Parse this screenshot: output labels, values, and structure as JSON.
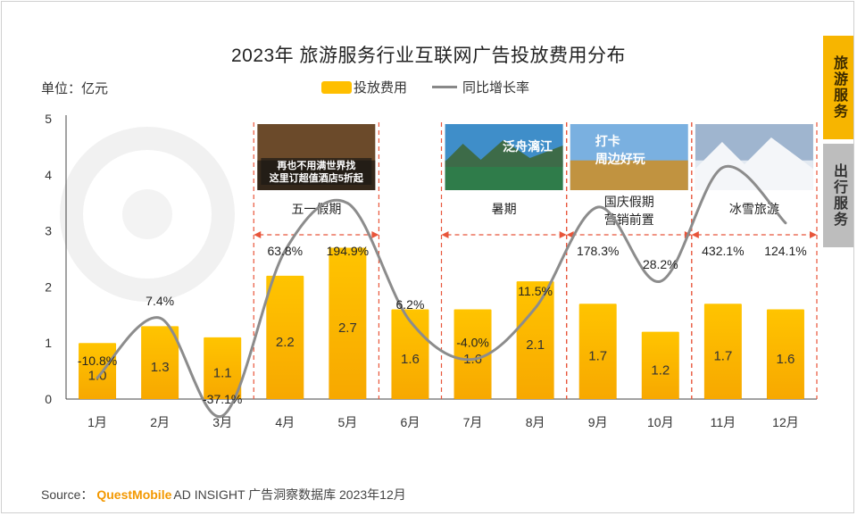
{
  "header": {
    "title": "2023年 旅游服务行业互联网广告投放费用分布",
    "unit": "单位：亿元"
  },
  "legend": {
    "bar_label": "投放费用",
    "line_label": "同比增长率"
  },
  "side_tabs": [
    {
      "label": "旅游服务",
      "active": true
    },
    {
      "label": "出行服务",
      "active": false
    }
  ],
  "source": {
    "prefix": "Source：",
    "brand": "QuestMobile",
    "suffix": "AD INSIGHT 广告洞察数据库 2023年12月"
  },
  "periods": [
    {
      "label": "五一假期",
      "lines": [
        "五一假期"
      ],
      "from": "4月",
      "to": "5月",
      "thumbnail": "hotel-ad-thumbnail",
      "thumb_text": [
        "再也不用满世界找",
        "这里订超值酒店5折起"
      ]
    },
    {
      "label": "暑期",
      "lines": [
        "暑期"
      ],
      "from": "7月",
      "to": "8月",
      "thumbnail": "lake-scenery-ad-thumbnail",
      "thumb_text": [
        "泛舟漓江"
      ]
    },
    {
      "label": "国庆假期营销前置",
      "lines": [
        "国庆假期",
        "营销前置"
      ],
      "from": "9月",
      "to": "10月",
      "thumbnail": "autumn-trip-ad-thumbnail",
      "thumb_text": [
        "打卡",
        "周边好玩"
      ]
    },
    {
      "label": "冰雪旅游",
      "lines": [
        "冰雪旅游"
      ],
      "from": "11月",
      "to": "12月",
      "thumbnail": "snow-tour-ad-thumbnail",
      "thumb_text": []
    }
  ],
  "colors": {
    "bar_top": "#FFC400",
    "bar_bottom": "#F7A800",
    "line": "#8c8c8c",
    "dash": "#E8553A",
    "accent_tab": "#F7B500"
  },
  "chart_data": {
    "type": "bar",
    "title": "2023年 旅游服务行业互联网广告投放费用分布",
    "categories": [
      "1月",
      "2月",
      "3月",
      "4月",
      "5月",
      "6月",
      "7月",
      "8月",
      "9月",
      "10月",
      "11月",
      "12月"
    ],
    "series": [
      {
        "name": "投放费用",
        "type": "bar",
        "values": [
          1.0,
          1.3,
          1.1,
          2.2,
          2.7,
          1.6,
          1.6,
          2.1,
          1.7,
          1.2,
          1.7,
          1.6
        ]
      },
      {
        "name": "同比增长率",
        "type": "line",
        "labels": [
          "-10.8%",
          "7.4%",
          "-37.1%",
          "63.8%",
          "194.9%",
          "6.2%",
          "-4.0%",
          "11.5%",
          "178.3%",
          "28.2%",
          "432.1%",
          "124.1%"
        ]
      }
    ],
    "bar_values_display": [
      "1.0",
      "1.3",
      "1.1",
      "2.2",
      "2.7",
      "1.6",
      "1.6",
      "2.1",
      "1.7",
      "1.2",
      "1.7",
      "1.6"
    ],
    "ylabel": "单位：亿元",
    "ylim": [
      0,
      5
    ],
    "yticks": [
      "0",
      "1",
      "2",
      "3",
      "4",
      "5"
    ],
    "grid": false,
    "legend": "top-center"
  }
}
